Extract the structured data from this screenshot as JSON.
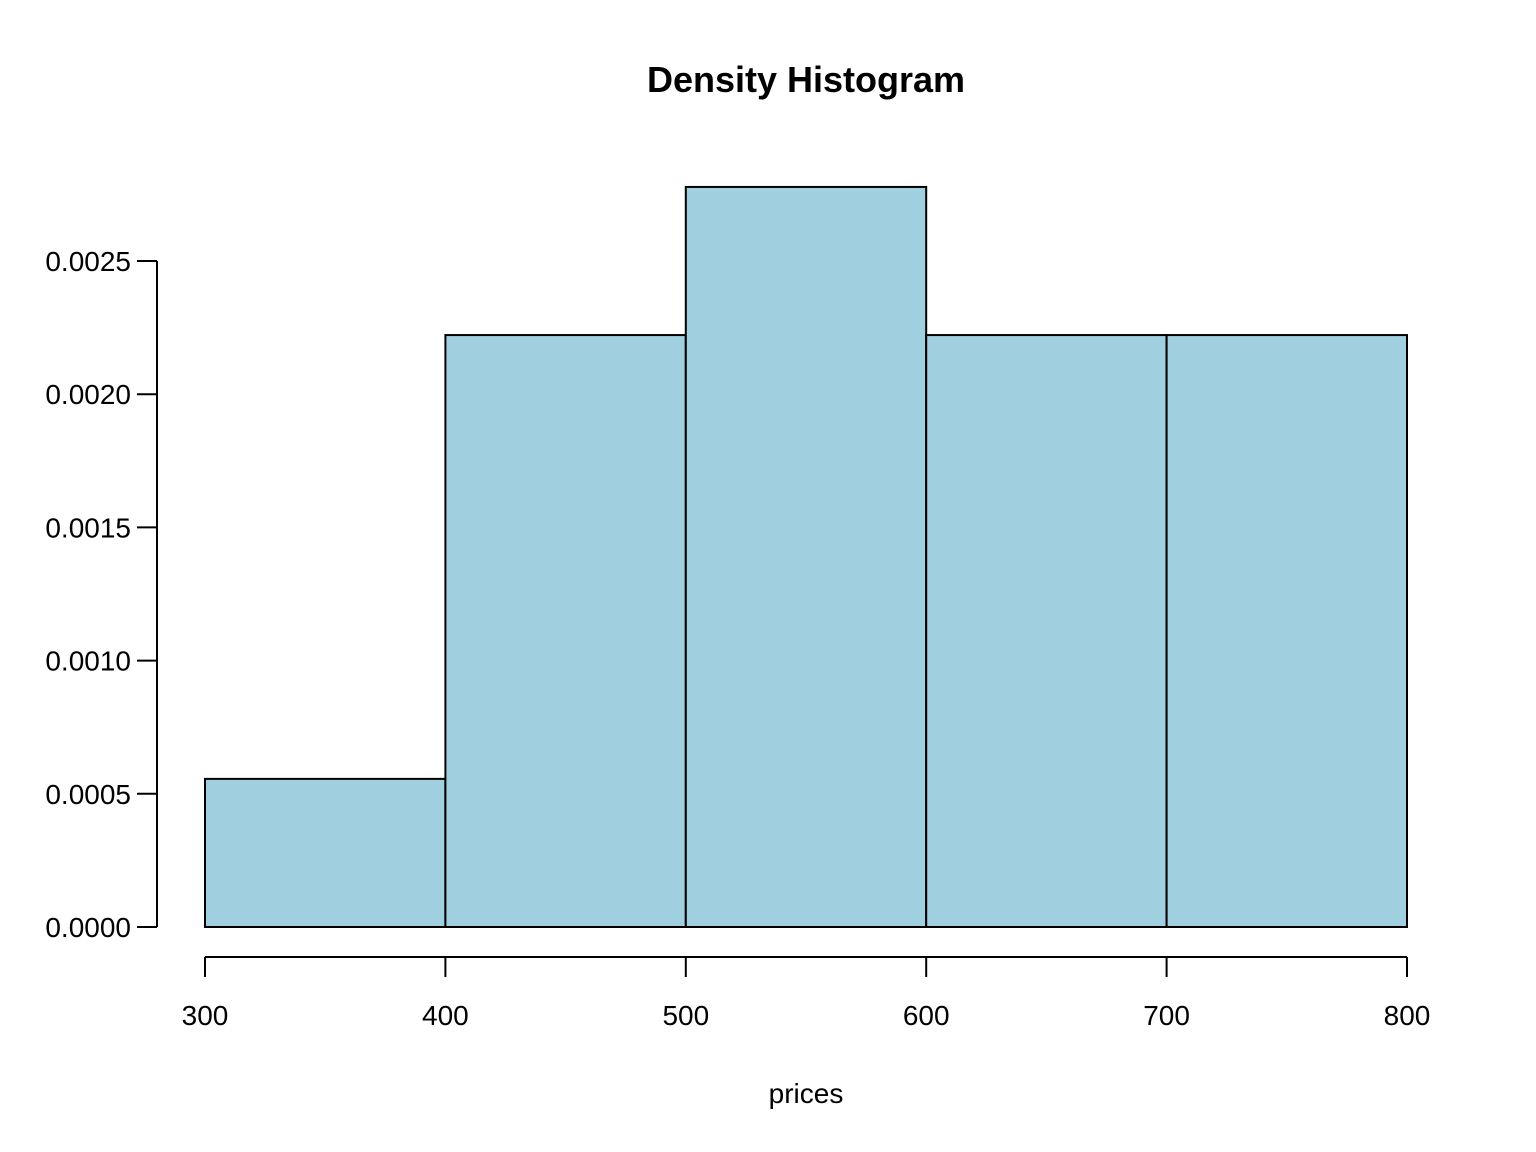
{
  "chart_data": {
    "type": "bar",
    "title": "Density Histogram",
    "xlabel": "prices",
    "ylabel": "",
    "bins": [
      {
        "start": 300,
        "end": 400,
        "density": 0.000556
      },
      {
        "start": 400,
        "end": 500,
        "density": 0.002222
      },
      {
        "start": 500,
        "end": 600,
        "density": 0.002778
      },
      {
        "start": 600,
        "end": 700,
        "density": 0.002222
      },
      {
        "start": 700,
        "end": 800,
        "density": 0.002222
      }
    ],
    "xlim": [
      300,
      800
    ],
    "ylim": [
      0,
      0.0025
    ],
    "x_ticks": [
      300,
      400,
      500,
      600,
      700,
      800
    ],
    "x_tick_labels": [
      "300",
      "400",
      "500",
      "600",
      "700",
      "800"
    ],
    "y_ticks": [
      0,
      0.0005,
      0.001,
      0.0015,
      0.002,
      0.0025
    ],
    "y_tick_labels": [
      "0.0000",
      "0.0005",
      "0.0010",
      "0.0015",
      "0.0020",
      "0.0025"
    ],
    "bar_fill_color": "#a0cfe0",
    "bar_edge_color": "#000000",
    "grid": false,
    "legend": "none"
  }
}
